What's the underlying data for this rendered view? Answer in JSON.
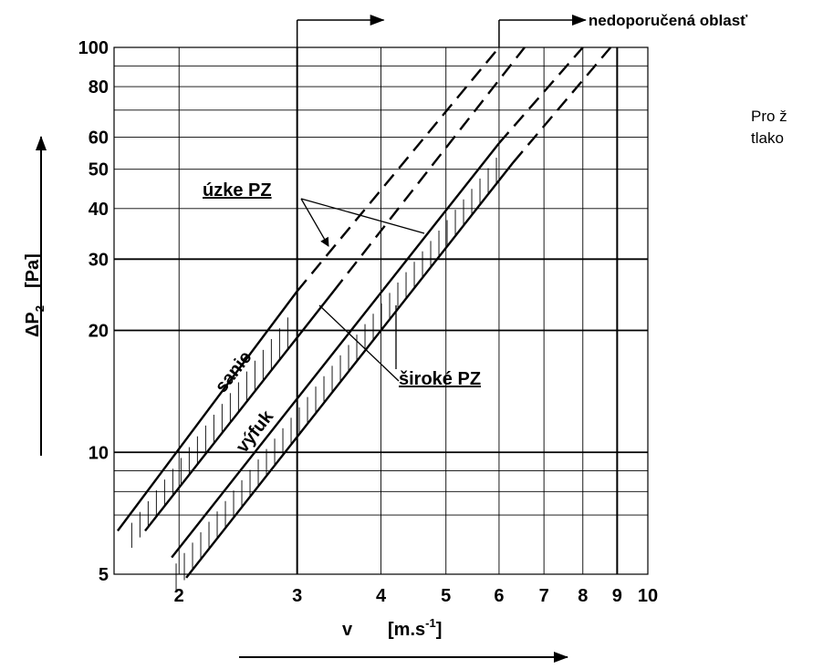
{
  "chart_data": {
    "type": "line",
    "x_scale": "log",
    "y_scale": "log",
    "xlim": [
      1.6,
      10
    ],
    "ylim": [
      5,
      100
    ],
    "grid": true,
    "x_ticks": [
      "2",
      "3",
      "4",
      "5",
      "6",
      "7",
      "8",
      "9",
      "10"
    ],
    "y_ticks": [
      "5",
      "10",
      "20",
      "30",
      "40",
      "50",
      "60",
      "80",
      "100"
    ],
    "x_tick_values": [
      2,
      3,
      4,
      5,
      6,
      7,
      8,
      9,
      10
    ],
    "y_tick_values": [
      5,
      10,
      20,
      30,
      40,
      50,
      60,
      80,
      100
    ],
    "minor_y_grid": [
      7,
      8,
      9,
      70,
      90
    ],
    "xlabel": {
      "symbol": "v",
      "unit_prefix": "[m.s",
      "unit_exp": "-1",
      "unit_suffix": "]"
    },
    "ylabel": {
      "symbol": "ΔP",
      "sub": "2",
      "unit": "[Pa]"
    },
    "series": [
      {
        "name": "sanie",
        "role": "upper",
        "x": [
          1.62,
          3.0
        ],
        "y": [
          6.4,
          25
        ],
        "dashed": {
          "x": [
            3.0,
            6.0
          ],
          "y": [
            25,
            100
          ]
        }
      },
      {
        "name": "sanie",
        "role": "lower",
        "x": [
          1.78,
          3.4
        ],
        "y": [
          6.4,
          25
        ],
        "dashed": {
          "x": [
            3.4,
            6.55
          ],
          "y": [
            25,
            100
          ]
        }
      },
      {
        "name": "výfuk",
        "role": "upper",
        "x": [
          1.95,
          6.0
        ],
        "y": [
          5.5,
          58
        ],
        "dashed": {
          "x": [
            6.0,
            8.0
          ],
          "y": [
            58,
            100
          ]
        }
      },
      {
        "name": "výfuk",
        "role": "lower",
        "x": [
          2.05,
          6.3
        ],
        "y": [
          4.9,
          52
        ],
        "dashed": {
          "x": [
            6.3,
            8.8
          ],
          "y": [
            52,
            100
          ]
        }
      }
    ],
    "annotations": {
      "narrow_zone": "úzke PZ",
      "wide_zone": "široké PZ",
      "not_recommended": "nedoporučená oblasť",
      "not_recommended_from_x": [
        3.0,
        6.0
      ]
    }
  },
  "side_note_lines": [
    "Pro ž",
    "tlako"
  ]
}
